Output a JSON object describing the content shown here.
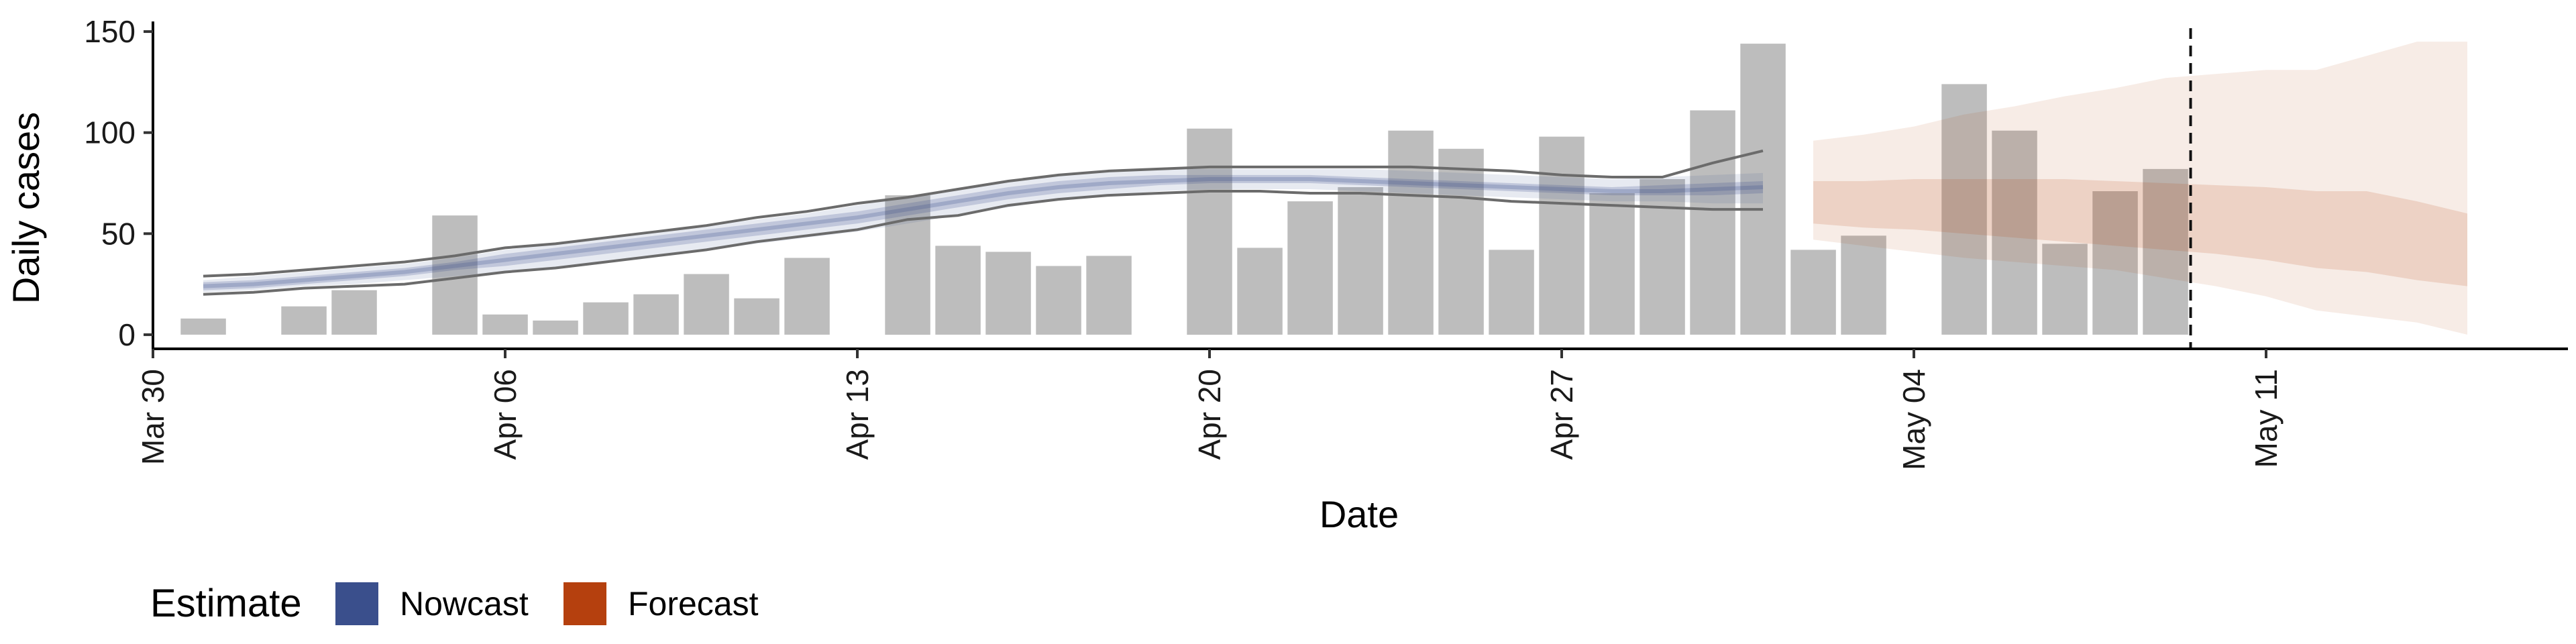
{
  "chart_data": {
    "type": "bar",
    "xlabel": "Date",
    "ylabel": "Daily cases",
    "ylim": [
      -7,
      155
    ],
    "y_ticks": [
      0,
      50,
      100,
      150
    ],
    "x_domain": [
      "2020-03-30",
      "2020-05-17"
    ],
    "x_ticks": [
      {
        "date": "2020-03-30",
        "label": "Mar 30"
      },
      {
        "date": "2020-04-06",
        "label": "Apr 06"
      },
      {
        "date": "2020-04-13",
        "label": "Apr 13"
      },
      {
        "date": "2020-04-20",
        "label": "Apr 20"
      },
      {
        "date": "2020-04-27",
        "label": "Apr 27"
      },
      {
        "date": "2020-05-04",
        "label": "May 04"
      },
      {
        "date": "2020-05-11",
        "label": "May 11"
      }
    ],
    "bars": [
      {
        "date": "2020-03-31",
        "value": 8
      },
      {
        "date": "2020-04-02",
        "value": 14
      },
      {
        "date": "2020-04-03",
        "value": 22
      },
      {
        "date": "2020-04-05",
        "value": 59
      },
      {
        "date": "2020-04-06",
        "value": 10
      },
      {
        "date": "2020-04-07",
        "value": 7
      },
      {
        "date": "2020-04-08",
        "value": 16
      },
      {
        "date": "2020-04-09",
        "value": 20
      },
      {
        "date": "2020-04-10",
        "value": 30
      },
      {
        "date": "2020-04-11",
        "value": 18
      },
      {
        "date": "2020-04-12",
        "value": 38
      },
      {
        "date": "2020-04-14",
        "value": 69
      },
      {
        "date": "2020-04-15",
        "value": 44
      },
      {
        "date": "2020-04-16",
        "value": 41
      },
      {
        "date": "2020-04-17",
        "value": 34
      },
      {
        "date": "2020-04-18",
        "value": 39
      },
      {
        "date": "2020-04-20",
        "value": 102
      },
      {
        "date": "2020-04-21",
        "value": 43
      },
      {
        "date": "2020-04-22",
        "value": 66
      },
      {
        "date": "2020-04-23",
        "value": 73
      },
      {
        "date": "2020-04-24",
        "value": 101
      },
      {
        "date": "2020-04-25",
        "value": 92
      },
      {
        "date": "2020-04-26",
        "value": 42
      },
      {
        "date": "2020-04-27",
        "value": 98
      },
      {
        "date": "2020-04-28",
        "value": 70
      },
      {
        "date": "2020-04-29",
        "value": 77
      },
      {
        "date": "2020-04-30",
        "value": 111
      },
      {
        "date": "2020-05-01",
        "value": 144
      },
      {
        "date": "2020-05-02",
        "value": 42
      },
      {
        "date": "2020-05-03",
        "value": 49
      },
      {
        "date": "2020-05-05",
        "value": 124
      },
      {
        "date": "2020-05-06",
        "value": 101
      },
      {
        "date": "2020-05-07",
        "value": 45
      },
      {
        "date": "2020-05-08",
        "value": 71
      },
      {
        "date": "2020-05-09",
        "value": 82
      }
    ],
    "nowcast": {
      "dates": [
        "2020-03-31",
        "2020-04-01",
        "2020-04-02",
        "2020-04-03",
        "2020-04-04",
        "2020-04-05",
        "2020-04-06",
        "2020-04-07",
        "2020-04-08",
        "2020-04-09",
        "2020-04-10",
        "2020-04-11",
        "2020-04-12",
        "2020-04-13",
        "2020-04-14",
        "2020-04-15",
        "2020-04-16",
        "2020-04-17",
        "2020-04-18",
        "2020-04-19",
        "2020-04-20",
        "2020-04-21",
        "2020-04-22",
        "2020-04-23",
        "2020-04-24",
        "2020-04-25",
        "2020-04-26",
        "2020-04-27",
        "2020-04-28",
        "2020-04-29",
        "2020-04-30",
        "2020-05-01"
      ],
      "median": [
        24,
        25,
        27,
        29,
        31,
        34,
        37,
        40,
        43,
        46,
        49,
        52,
        55,
        58,
        62,
        66,
        70,
        73,
        75,
        76,
        77,
        77,
        77,
        76,
        75,
        74,
        73,
        72,
        71,
        71,
        72,
        73
      ],
      "lower20": [
        22,
        23,
        25,
        27,
        29,
        32,
        34,
        37,
        40,
        43,
        46,
        49,
        52,
        55,
        59,
        63,
        67,
        70,
        72,
        74,
        75,
        75,
        75,
        74,
        73,
        72,
        71,
        70,
        69,
        69,
        69,
        70
      ],
      "upper20": [
        26,
        27,
        29,
        31,
        33,
        36,
        40,
        43,
        46,
        49,
        52,
        55,
        58,
        61,
        65,
        69,
        73,
        76,
        78,
        79,
        79,
        79,
        79,
        78,
        77,
        76,
        75,
        74,
        73,
        74,
        75,
        76
      ],
      "lower50": [
        21,
        22,
        24,
        25,
        27,
        29,
        31,
        33,
        36,
        39,
        42,
        45,
        48,
        51,
        55,
        59,
        63,
        67,
        69,
        71,
        72,
        72,
        72,
        71,
        70,
        69,
        68,
        67,
        66,
        66,
        65,
        65
      ],
      "upper50": [
        27,
        29,
        31,
        33,
        35,
        38,
        42,
        45,
        48,
        51,
        54,
        57,
        60,
        64,
        68,
        72,
        76,
        79,
        81,
        82,
        82,
        82,
        82,
        82,
        81,
        80,
        79,
        78,
        77,
        78,
        79,
        80
      ],
      "lower90": [
        20,
        21,
        23,
        24,
        25,
        28,
        31,
        33,
        36,
        39,
        42,
        46,
        49,
        52,
        57,
        59,
        64,
        67,
        69,
        70,
        71,
        71,
        70,
        70,
        69,
        68,
        66,
        65,
        64,
        63,
        62,
        62
      ],
      "upper90": [
        29,
        30,
        32,
        34,
        36,
        39,
        43,
        45,
        48,
        51,
        54,
        58,
        61,
        65,
        68,
        72,
        76,
        79,
        81,
        82,
        83,
        83,
        83,
        83,
        83,
        82,
        81,
        79,
        78,
        78,
        85,
        91
      ]
    },
    "forecast": {
      "dates": [
        "2020-05-02",
        "2020-05-03",
        "2020-05-04",
        "2020-05-05",
        "2020-05-06",
        "2020-05-07",
        "2020-05-08",
        "2020-05-09",
        "2020-05-10",
        "2020-05-11",
        "2020-05-12",
        "2020-05-13",
        "2020-05-14",
        "2020-05-15"
      ],
      "lower50": [
        55,
        53,
        52,
        50,
        48,
        46,
        44,
        42,
        40,
        37,
        33,
        31,
        27,
        24
      ],
      "upper50": [
        76,
        76,
        77,
        77,
        77,
        77,
        76,
        75,
        74,
        73,
        71,
        71,
        66,
        60
      ],
      "lower90": [
        47,
        44,
        41,
        38,
        36,
        34,
        32,
        28,
        24,
        19,
        12,
        9,
        6,
        0
      ],
      "upper90": [
        96,
        99,
        103,
        109,
        113,
        118,
        122,
        127,
        129,
        131,
        131,
        138,
        145,
        145
      ]
    },
    "reference_line_date": "2020-05-09",
    "legend": {
      "title": "Estimate",
      "position": "bottom-left",
      "entries": [
        {
          "label": "Nowcast",
          "color": "#3a4f8c"
        },
        {
          "label": "Forecast",
          "color": "#b5400e"
        }
      ]
    },
    "colors": {
      "bars": "#bdbdbd",
      "nowcast": "#3a4f8c",
      "nowcast_line": "#6b6b6b",
      "forecast": "#b5400e",
      "axis": "#000000"
    }
  }
}
